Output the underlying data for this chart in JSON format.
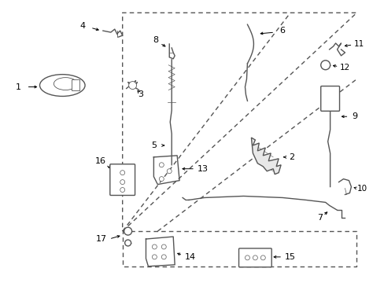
{
  "background_color": "#ffffff",
  "line_color": "#555555",
  "label_color": "#000000",
  "figsize": [
    4.89,
    3.6
  ],
  "dpi": 100
}
